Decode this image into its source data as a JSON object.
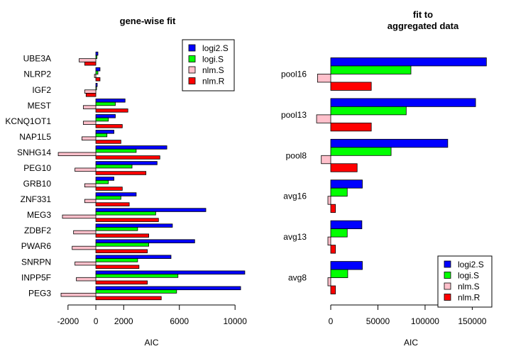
{
  "series_styles": [
    {
      "name": "logi2.S",
      "color": "#0000ff"
    },
    {
      "name": "logi.S",
      "color": "#00ff00"
    },
    {
      "name": "nlm.S",
      "color": "#ffc0cb"
    },
    {
      "name": "nlm.R",
      "color": "#ff0000"
    }
  ],
  "chart_data": [
    {
      "type": "bar",
      "orientation": "horizontal",
      "title": "gene-wise fit",
      "xlabel": "AIC",
      "ylabel": "",
      "xlim": [
        -2500,
        10500
      ],
      "xticks": [
        -2000,
        0,
        2000,
        6000,
        10000
      ],
      "xtick_labels": [
        "-2000",
        "0",
        "2000",
        "6000",
        "10000"
      ],
      "legend_position": "top-right",
      "categories": [
        "PEG3",
        "INPP5F",
        "SNRPN",
        "PWAR6",
        "ZDBF2",
        "MEG3",
        "ZNF331",
        "GRB10",
        "PEG10",
        "SNHG14",
        "NAP1L5",
        "KCNQ1OT1",
        "MEST",
        "IGF2",
        "NLRP2",
        "UBE3A"
      ],
      "series": [
        {
          "name": "logi2.S",
          "values": [
            10400,
            10700,
            5400,
            7100,
            5500,
            7900,
            2900,
            1300,
            4400,
            5100,
            1300,
            1400,
            2100,
            100,
            300,
            150
          ]
        },
        {
          "name": "logi.S",
          "values": [
            5800,
            5900,
            3000,
            3800,
            3000,
            4300,
            1800,
            900,
            2600,
            2900,
            800,
            900,
            1400,
            50,
            150,
            80
          ]
        },
        {
          "name": "nlm.S",
          "values": [
            -2500,
            -1400,
            -1500,
            -1700,
            -1600,
            -2400,
            -800,
            -800,
            -1500,
            -2700,
            -1000,
            -900,
            -900,
            -800,
            -100,
            -1200
          ]
        },
        {
          "name": "nlm.R",
          "values": [
            4700,
            3700,
            3100,
            3700,
            3800,
            4500,
            2400,
            1900,
            3600,
            4600,
            1800,
            1900,
            2300,
            -700,
            300,
            -800
          ]
        }
      ]
    },
    {
      "type": "bar",
      "orientation": "horizontal",
      "title": "fit to\naggregated data",
      "title_lines": [
        "fit to",
        "aggregated data"
      ],
      "xlabel": "AIC",
      "ylabel": "",
      "xlim": [
        0,
        170000
      ],
      "xticks": [
        0,
        50000,
        100000,
        150000
      ],
      "xtick_labels": [
        "0",
        "50000",
        "100000",
        "150000"
      ],
      "legend_position": "bottom-right",
      "categories": [
        "avg8",
        "avg13",
        "avg16",
        "pool8",
        "pool13",
        "pool16"
      ],
      "series": [
        {
          "name": "logi2.S",
          "values": [
            33500,
            33000,
            33500,
            124000,
            153500,
            165000
          ]
        },
        {
          "name": "logi.S",
          "values": [
            18000,
            17500,
            17500,
            64000,
            80000,
            85000
          ]
        },
        {
          "name": "nlm.S",
          "values": [
            -3000,
            -3000,
            -3000,
            -10000,
            -15000,
            -14000
          ]
        },
        {
          "name": "nlm.R",
          "values": [
            5000,
            5000,
            5000,
            28000,
            43000,
            43000
          ]
        }
      ]
    }
  ]
}
